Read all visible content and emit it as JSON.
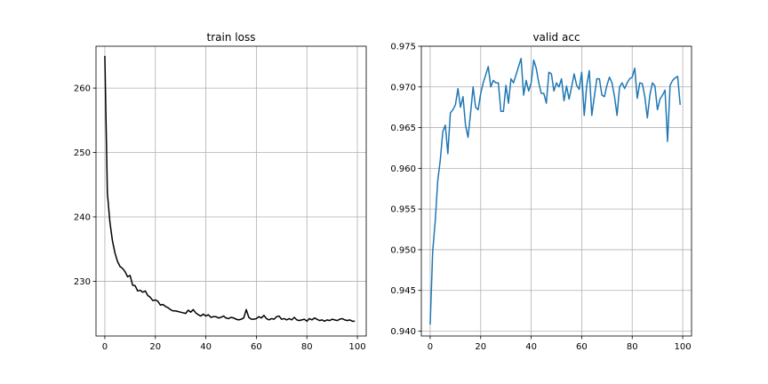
{
  "chart_data": [
    {
      "type": "line",
      "title": "train loss",
      "xlabel": "",
      "ylabel": "",
      "grid": true,
      "xlim": [
        -3.5,
        103.5
      ],
      "ylim": [
        221.5,
        266.5
      ],
      "xticks": [
        0,
        20,
        40,
        60,
        80,
        100
      ],
      "yticks": [
        230,
        240,
        250,
        260
      ],
      "line_color": "#000000",
      "series": [
        {
          "x": [
            0,
            1,
            2,
            3,
            4,
            5,
            6,
            7,
            8,
            9,
            10,
            11,
            12,
            13,
            14,
            15,
            16,
            17,
            18,
            19,
            20,
            21,
            22,
            23,
            24,
            25,
            26,
            27,
            28,
            29,
            30,
            31,
            32,
            33,
            34,
            35,
            36,
            37,
            38,
            39,
            40,
            41,
            42,
            43,
            44,
            45,
            46,
            47,
            48,
            49,
            50,
            51,
            52,
            53,
            54,
            55,
            56,
            57,
            58,
            59,
            60,
            61,
            62,
            63,
            64,
            65,
            66,
            67,
            68,
            69,
            70,
            71,
            72,
            73,
            74,
            75,
            76,
            77,
            78,
            79,
            80,
            81,
            82,
            83,
            84,
            85,
            86,
            87,
            88,
            89,
            90,
            91,
            92,
            93,
            94,
            95,
            96,
            97,
            98,
            99
          ],
          "y": [
            265,
            243.7,
            239.2,
            236.3,
            234.4,
            233.1,
            232.3,
            232.0,
            231.5,
            230.7,
            230.9,
            229.4,
            229.3,
            228.5,
            228.6,
            228.3,
            228.5,
            227.8,
            227.5,
            227.0,
            227.1,
            226.9,
            226.3,
            226.4,
            226.1,
            225.9,
            225.6,
            225.4,
            225.4,
            225.3,
            225.2,
            225.1,
            225.0,
            225.5,
            225.2,
            225.6,
            225.1,
            224.8,
            224.6,
            224.9,
            224.6,
            224.8,
            224.4,
            224.5,
            224.5,
            224.3,
            224.4,
            224.6,
            224.3,
            224.2,
            224.4,
            224.3,
            224.1,
            224.0,
            224.1,
            224.3,
            225.6,
            224.4,
            224.1,
            224.1,
            224.2,
            224.5,
            224.3,
            224.7,
            224.2,
            224.0,
            224.2,
            224.1,
            224.5,
            224.6,
            224.1,
            224.2,
            224.0,
            224.2,
            224.0,
            224.4,
            224.0,
            223.9,
            224.0,
            224.1,
            223.8,
            224.2,
            224.0,
            224.3,
            224.1,
            223.9,
            224.0,
            223.8,
            224.0,
            223.9,
            224.1,
            224.0,
            223.9,
            224.1,
            224.2,
            224.0,
            223.9,
            224.0,
            223.8,
            223.8
          ]
        }
      ]
    },
    {
      "type": "line",
      "title": "valid acc",
      "xlabel": "",
      "ylabel": "",
      "grid": true,
      "xlim": [
        -3.5,
        103.5
      ],
      "ylim": [
        0.9394,
        0.975
      ],
      "xticks": [
        0,
        20,
        40,
        60,
        80,
        100
      ],
      "yticks": [
        0.94,
        0.945,
        0.95,
        0.955,
        0.96,
        0.965,
        0.97,
        0.975
      ],
      "ytick_decimals": 3,
      "line_color": "#1f77b4",
      "series": [
        {
          "x": [
            0,
            1,
            2,
            3,
            4,
            5,
            6,
            7,
            8,
            9,
            10,
            11,
            12,
            13,
            14,
            15,
            16,
            17,
            18,
            19,
            20,
            21,
            22,
            23,
            24,
            25,
            26,
            27,
            28,
            29,
            30,
            31,
            32,
            33,
            34,
            35,
            36,
            37,
            38,
            39,
            40,
            41,
            42,
            43,
            44,
            45,
            46,
            47,
            48,
            49,
            50,
            51,
            52,
            53,
            54,
            55,
            56,
            57,
            58,
            59,
            60,
            61,
            62,
            63,
            64,
            65,
            66,
            67,
            68,
            69,
            70,
            71,
            72,
            73,
            74,
            75,
            76,
            77,
            78,
            79,
            80,
            81,
            82,
            83,
            84,
            85,
            86,
            87,
            88,
            89,
            90,
            91,
            92,
            93,
            94,
            95,
            96,
            97,
            98,
            99
          ],
          "y": [
            0.9408,
            0.9498,
            0.9535,
            0.9585,
            0.961,
            0.9645,
            0.9653,
            0.9618,
            0.9668,
            0.9672,
            0.9678,
            0.9698,
            0.9675,
            0.9688,
            0.9653,
            0.9638,
            0.9668,
            0.97,
            0.9675,
            0.9672,
            0.9692,
            0.9705,
            0.9715,
            0.9725,
            0.97,
            0.9708,
            0.9705,
            0.9705,
            0.967,
            0.967,
            0.9702,
            0.968,
            0.971,
            0.9705,
            0.9715,
            0.9725,
            0.9735,
            0.969,
            0.9708,
            0.9695,
            0.9705,
            0.9733,
            0.9723,
            0.9705,
            0.9692,
            0.9692,
            0.968,
            0.9718,
            0.9716,
            0.9695,
            0.9705,
            0.97,
            0.971,
            0.9683,
            0.9701,
            0.9685,
            0.97,
            0.9716,
            0.9702,
            0.9697,
            0.9718,
            0.9665,
            0.9702,
            0.972,
            0.9665,
            0.9688,
            0.971,
            0.971,
            0.969,
            0.9688,
            0.9702,
            0.9712,
            0.9705,
            0.9688,
            0.9665,
            0.97,
            0.9705,
            0.9698,
            0.9705,
            0.971,
            0.9712,
            0.9723,
            0.9686,
            0.9705,
            0.9704,
            0.9688,
            0.9662,
            0.969,
            0.9705,
            0.9701,
            0.9672,
            0.9685,
            0.969,
            0.9696,
            0.9633,
            0.9702,
            0.9708,
            0.9711,
            0.9713,
            0.9678
          ]
        }
      ]
    }
  ]
}
